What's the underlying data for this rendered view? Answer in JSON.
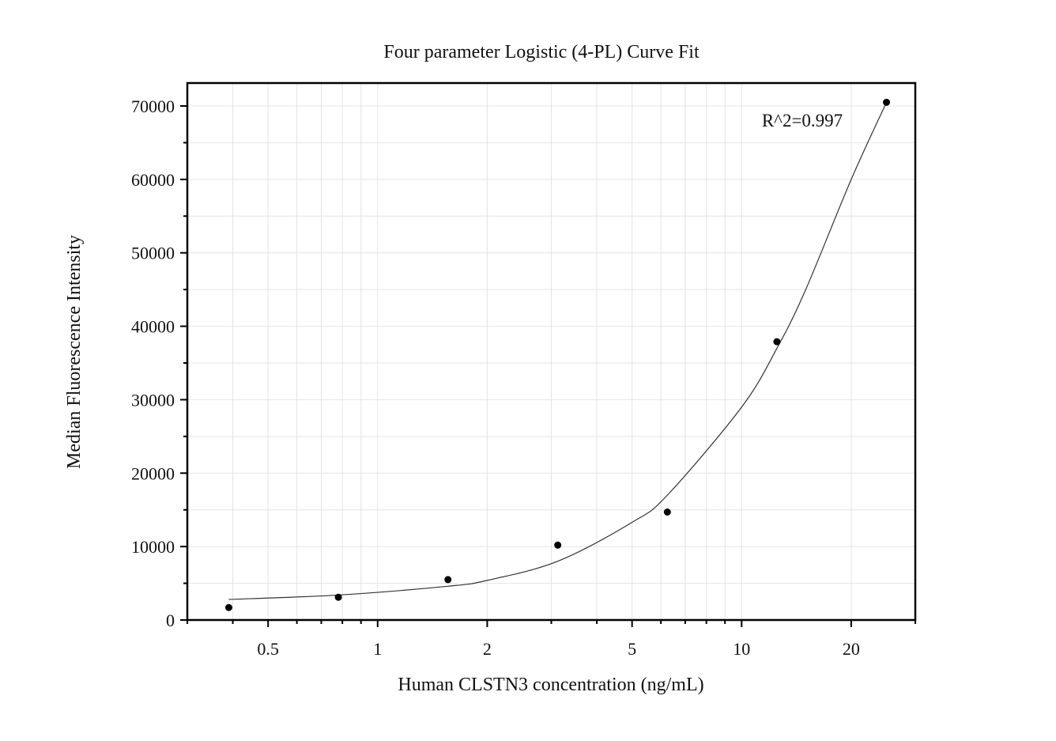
{
  "chart_data": {
    "type": "scatter",
    "title": "Four parameter Logistic (4-PL) Curve Fit",
    "xlabel": "Human CLSTN3 concentration (ng/mL)",
    "ylabel": "Median Fluorescence Intensity",
    "xscale": "log",
    "xlim": [
      0.3,
      30
    ],
    "ylim": [
      0,
      70000
    ],
    "grid": true,
    "x_ticks": [
      0.5,
      1,
      2,
      5,
      10,
      20
    ],
    "x_tick_labels": [
      "0.5",
      "1",
      "2",
      "5",
      "10",
      "20"
    ],
    "y_ticks": [
      0,
      10000,
      20000,
      30000,
      40000,
      50000,
      60000,
      70000
    ],
    "y_tick_labels": [
      "0",
      "10000",
      "20000",
      "30000",
      "40000",
      "50000",
      "60000",
      "70000"
    ],
    "annotation": "R^2=0.997",
    "series": [
      {
        "type": "scatter",
        "x": [
          0.39,
          0.78,
          1.56,
          3.125,
          6.25,
          12.5,
          25
        ],
        "y": [
          1700,
          3100,
          5500,
          10200,
          14700,
          37900,
          70500
        ]
      },
      {
        "type": "line",
        "x": [
          0.39,
          0.78,
          1.56,
          2.0,
          3.125,
          5.0,
          6.25,
          10.0,
          12.5,
          15.0,
          20.0,
          25
        ],
        "y": [
          2800,
          3400,
          4600,
          5400,
          8000,
          13300,
          17000,
          29000,
          37000,
          45000,
          60000,
          70500
        ]
      }
    ],
    "colors": {
      "points": "#000000",
      "curve": "#333333",
      "grid": "#e4e4e4",
      "frame": "#000000"
    }
  }
}
